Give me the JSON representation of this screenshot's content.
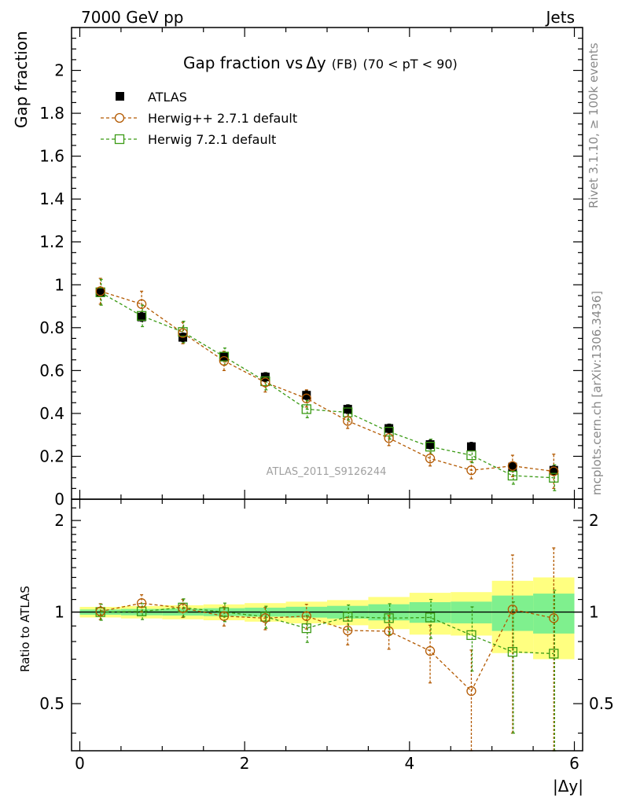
{
  "header": {
    "left": "7000 GeV pp",
    "right": "Jets"
  },
  "side_labels": {
    "rivet": "Rivet 3.1.10, ≥ 100k events",
    "mcplots": "mcplots.cern.ch [arXiv:1306.3436]"
  },
  "analysis_id": "ATLAS_2011_S9126244",
  "colors": {
    "atlas": "#000000",
    "herwigpp": "#b35900",
    "herwig7": "#3a9a14",
    "band_inner": "#7ff08e",
    "band_outer": "#ffff80"
  },
  "chart_data": [
    {
      "type": "scatter",
      "panel": "main",
      "title_main": "Gap fraction vs",
      "title_var": "Δy",
      "title_sub": "(FB)",
      "title_cut": "(70 < pT <  90)",
      "xlabel": "|Δy|",
      "ylabel": "Gap fraction",
      "xlim": [
        -0.1,
        6.1
      ],
      "ylim": [
        0,
        2.2
      ],
      "xticks": [
        "0",
        "2",
        "4",
        "6"
      ],
      "yticks": [
        "0",
        "0.2",
        "0.4",
        "0.6",
        "0.8",
        "1",
        "1.2",
        "1.4",
        "1.6",
        "1.8",
        "2"
      ],
      "legend_position": "top-left",
      "x": [
        0.25,
        0.75,
        1.25,
        1.75,
        2.25,
        2.75,
        3.25,
        3.75,
        4.25,
        4.75,
        5.25,
        5.75
      ],
      "series": [
        {
          "name": "ATLAS",
          "marker": "filled-square",
          "values": [
            0.965,
            0.85,
            0.755,
            0.665,
            0.57,
            0.485,
            0.42,
            0.33,
            0.255,
            0.245,
            0.15,
            0.135
          ],
          "errors": [
            0.02,
            0.02,
            0.02,
            0.02,
            0.02,
            0.02,
            0.02,
            0.02,
            0.02,
            0.02,
            0.02,
            0.02
          ]
        },
        {
          "name": "Herwig++ 2.7.1 default",
          "marker": "open-circle",
          "style": "dashed",
          "values": [
            0.97,
            0.91,
            0.775,
            0.645,
            0.545,
            0.47,
            0.365,
            0.285,
            0.19,
            0.135,
            0.155,
            0.13
          ],
          "errors": [
            0.06,
            0.06,
            0.05,
            0.045,
            0.045,
            0.04,
            0.035,
            0.035,
            0.035,
            0.04,
            0.05,
            0.08
          ]
        },
        {
          "name": "Herwig 7.2.1 default",
          "marker": "open-square",
          "style": "dashed",
          "values": [
            0.965,
            0.855,
            0.78,
            0.665,
            0.55,
            0.42,
            0.405,
            0.315,
            0.245,
            0.205,
            0.11,
            0.1
          ],
          "errors": [
            0.06,
            0.05,
            0.05,
            0.04,
            0.04,
            0.04,
            0.035,
            0.035,
            0.035,
            0.035,
            0.04,
            0.06
          ]
        }
      ]
    },
    {
      "type": "scatter",
      "panel": "ratio",
      "xlabel": "|Δy|",
      "ylabel": "Ratio to ATLAS",
      "ylim": [
        0.35,
        2.35
      ],
      "log_scale_y": true,
      "xticks": [
        "0",
        "2",
        "4",
        "6"
      ],
      "yticks": [
        "0.5",
        "1",
        "2"
      ],
      "x_edges": [
        0,
        0.5,
        1,
        1.5,
        2,
        2.5,
        3,
        3.5,
        4,
        4.5,
        5,
        5.5,
        6
      ],
      "band_inner": [
        0.02,
        0.024,
        0.026,
        0.03,
        0.034,
        0.041,
        0.048,
        0.061,
        0.078,
        0.082,
        0.133,
        0.15
      ],
      "band_outer": [
        0.04,
        0.047,
        0.053,
        0.06,
        0.07,
        0.082,
        0.095,
        0.121,
        0.157,
        0.163,
        0.267,
        0.3
      ],
      "x": [
        0.25,
        0.75,
        1.25,
        1.75,
        2.25,
        2.75,
        3.25,
        3.75,
        4.25,
        4.75,
        5.25,
        5.75
      ],
      "series": [
        {
          "name": "Herwig++ 2.7.1 default",
          "values": [
            1.005,
            1.07,
            1.03,
            0.97,
            0.955,
            0.97,
            0.87,
            0.865,
            0.745,
            0.55,
            1.02,
            0.955
          ],
          "err_lo": [
            0.06,
            0.07,
            0.07,
            0.07,
            0.08,
            0.09,
            0.09,
            0.11,
            0.16,
            0.2,
            0.62,
            0.7
          ],
          "err_hi": [
            0.06,
            0.07,
            0.07,
            0.07,
            0.08,
            0.09,
            0.09,
            0.11,
            0.16,
            0.2,
            0.52,
            0.67
          ]
        },
        {
          "name": "Herwig 7.2.1 default",
          "values": [
            1.0,
            1.005,
            1.035,
            1.0,
            0.965,
            0.885,
            0.965,
            0.955,
            0.96,
            0.84,
            0.74,
            0.73
          ],
          "err_lo": [
            0.06,
            0.06,
            0.07,
            0.07,
            0.08,
            0.09,
            0.09,
            0.11,
            0.14,
            0.2,
            0.34,
            0.45
          ],
          "err_hi": [
            0.06,
            0.06,
            0.07,
            0.07,
            0.08,
            0.09,
            0.09,
            0.11,
            0.14,
            0.2,
            0.34,
            0.45
          ]
        }
      ]
    }
  ]
}
